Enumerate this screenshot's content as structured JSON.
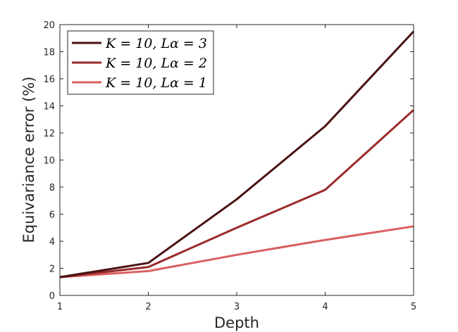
{
  "chart_data": {
    "type": "line",
    "xlabel": "Depth",
    "ylabel": "Equivariance error (%)",
    "x": [
      1,
      2,
      3,
      4,
      5
    ],
    "xlim": [
      1,
      5
    ],
    "ylim": [
      0,
      20
    ],
    "xticks": [
      "1",
      "2",
      "3",
      "4",
      "5"
    ],
    "yticks": [
      "0",
      "2",
      "4",
      "6",
      "8",
      "10",
      "12",
      "14",
      "16",
      "18",
      "20"
    ],
    "grid": false,
    "legend_position": "top-left",
    "series": [
      {
        "name": "K = 10, Lα = 3",
        "values": [
          1.35,
          2.4,
          7.1,
          12.5,
          19.5
        ],
        "color": "#4a1212"
      },
      {
        "name": "K = 10, Lα = 2",
        "values": [
          1.35,
          2.1,
          5.0,
          7.8,
          13.7
        ],
        "color": "#9b2a2a"
      },
      {
        "name": "K = 10, Lα = 1",
        "values": [
          1.35,
          1.8,
          3.0,
          4.1,
          5.1
        ],
        "color": "#d9605f"
      }
    ]
  }
}
